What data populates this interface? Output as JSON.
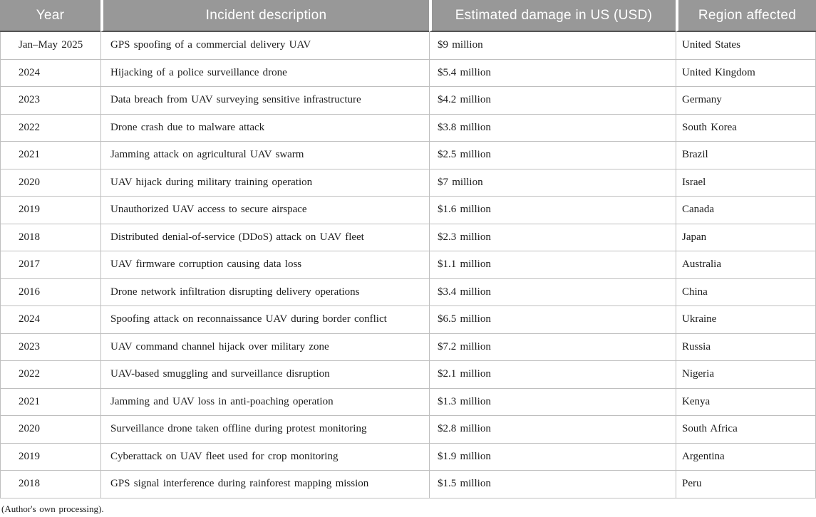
{
  "table": {
    "columns": [
      "Year",
      "Incident description",
      "Estimated damage in US (USD)",
      "Region affected"
    ],
    "rows": [
      [
        "Jan–May 2025",
        "GPS spoofing of a commercial delivery UAV",
        "$9 million",
        "United States"
      ],
      [
        "2024",
        "Hijacking of a police surveillance drone",
        "$5.4 million",
        "United Kingdom"
      ],
      [
        "2023",
        "Data breach from UAV surveying sensitive infrastructure",
        "$4.2 million",
        "Germany"
      ],
      [
        "2022",
        "Drone crash due to malware attack",
        "$3.8 million",
        "South Korea"
      ],
      [
        "2021",
        "Jamming attack on agricultural UAV swarm",
        "$2.5 million",
        "Brazil"
      ],
      [
        "2020",
        "UAV hijack during military training operation",
        "$7 million",
        "Israel"
      ],
      [
        "2019",
        "Unauthorized UAV access to secure airspace",
        "$1.6 million",
        "Canada"
      ],
      [
        "2018",
        "Distributed denial-of-service (DDoS) attack on UAV fleet",
        "$2.3 million",
        "Japan"
      ],
      [
        "2017",
        "UAV firmware corruption causing data loss",
        "$1.1 million",
        "Australia"
      ],
      [
        "2016",
        "Drone network infiltration disrupting delivery operations",
        "$3.4 million",
        "China"
      ],
      [
        "2024",
        "Spoofing attack on reconnaissance UAV during border conflict",
        "$6.5 million",
        "Ukraine"
      ],
      [
        "2023",
        "UAV command channel hijack over military zone",
        "$7.2 million",
        "Russia"
      ],
      [
        "2022",
        "UAV-based smuggling and surveillance disruption",
        "$2.1 million",
        "Nigeria"
      ],
      [
        "2021",
        "Jamming and UAV loss in anti-poaching operation",
        "$1.3 million",
        "Kenya"
      ],
      [
        "2020",
        "Surveillance drone taken offline during protest monitoring",
        "$2.8 million",
        "South Africa"
      ],
      [
        "2019",
        "Cyberattack on UAV fleet used for crop monitoring",
        "$1.9 million",
        "Argentina"
      ],
      [
        "2018",
        "GPS signal interference during rainforest mapping mission",
        "$1.5 million",
        "Peru"
      ]
    ]
  },
  "footer": {
    "note": "(Author's own processing)."
  },
  "colors": {
    "header_bg": "#989898",
    "header_text": "#ffffff",
    "border_light": "#bfbfbf",
    "border_dark": "#555555",
    "body_text": "#1c1c1c"
  }
}
